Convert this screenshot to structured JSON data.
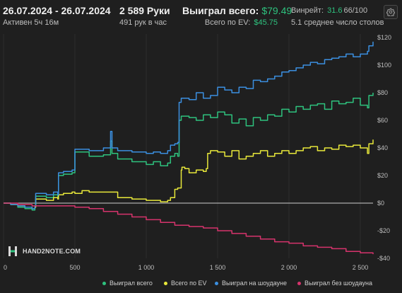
{
  "header": {
    "date_range": "26.07.2024 - 26.07.2024",
    "active_time": "Активен 5ч 16м",
    "hands_count": "2 589 Руки",
    "hands_rate": "491 рук в час",
    "won_total_label": "Выиграл всего:",
    "won_total_value": "$79.49",
    "ev_total_label": "Всего по EV:",
    "ev_total_value": "$45.75",
    "winrate_label": "Винрейт:",
    "winrate_value": "31.6",
    "winrate_suffix": "66/100",
    "avg_tables": "5.1 среднее число столов"
  },
  "icons": {
    "settings": "gear-icon",
    "logo": "hand2note-logo-icon"
  },
  "logo_text": "HAND2NOTE.COM",
  "colors": {
    "background": "#1f1f1f",
    "green": "#2ec27e",
    "yellow": "#e8e83a",
    "blue": "#3b8fe0",
    "pink": "#d6336c",
    "zero_line": "#cfcfcf",
    "grid": "#2e2e2e"
  },
  "chart_data": {
    "type": "line",
    "xlim": [
      0,
      2589
    ],
    "ylim": [
      -40,
      120
    ],
    "x_ticks": [
      0,
      500,
      1000,
      1500,
      2000,
      2500
    ],
    "x_tick_labels": [
      "0",
      "500",
      "1 000",
      "1 500",
      "2 000",
      "2 500"
    ],
    "y_ticks": [
      120,
      100,
      80,
      60,
      40,
      20,
      0,
      -20,
      -40
    ],
    "y_tick_labels": [
      "$120",
      "$100",
      "$80",
      "$60",
      "$40",
      "$20",
      "$0",
      "-$20",
      "-$40"
    ],
    "legend_position": "bottom",
    "grid": "vertical",
    "series": [
      {
        "name": "Выиграл всего",
        "color": "#2ec27e",
        "x": [
          0,
          50,
          100,
          150,
          200,
          220,
          225,
          300,
          350,
          380,
          385,
          420,
          480,
          500,
          600,
          700,
          710,
          750,
          760,
          800,
          900,
          1000,
          1050,
          1100,
          1150,
          1170,
          1200,
          1220,
          1230,
          1245,
          1300,
          1350,
          1400,
          1450,
          1500,
          1550,
          1600,
          1650,
          1700,
          1750,
          1800,
          1850,
          1900,
          1950,
          2000,
          2050,
          2100,
          2150,
          2200,
          2250,
          2300,
          2350,
          2400,
          2450,
          2500,
          2550,
          2560,
          2589
        ],
        "y": [
          0,
          -1,
          -3,
          -4,
          -5,
          -3,
          5,
          4,
          6,
          4,
          20,
          21,
          22,
          37,
          34,
          35,
          35,
          45,
          36,
          32,
          30,
          28,
          30,
          27,
          29,
          34,
          36,
          34,
          60,
          63,
          62,
          60,
          64,
          62,
          66,
          64,
          58,
          61,
          56,
          62,
          60,
          64,
          63,
          68,
          66,
          70,
          68,
          71,
          72,
          68,
          74,
          72,
          73,
          76,
          71,
          69,
          78,
          80
        ]
      },
      {
        "name": "Всего по EV",
        "color": "#e8e83a",
        "x": [
          0,
          50,
          100,
          150,
          200,
          220,
          225,
          300,
          350,
          380,
          385,
          420,
          480,
          500,
          550,
          600,
          700,
          800,
          900,
          1000,
          1050,
          1100,
          1150,
          1170,
          1200,
          1220,
          1245,
          1250,
          1270,
          1300,
          1350,
          1400,
          1420,
          1430,
          1450,
          1500,
          1550,
          1600,
          1650,
          1700,
          1750,
          1800,
          1850,
          1900,
          1950,
          2000,
          2050,
          2100,
          2150,
          2200,
          2250,
          2300,
          2350,
          2400,
          2450,
          2500,
          2550,
          2560,
          2589
        ],
        "y": [
          0,
          -1,
          -2,
          -3,
          -4,
          -3,
          3,
          2,
          4,
          3,
          6,
          7,
          8,
          7,
          9,
          8,
          8,
          4,
          3,
          2,
          2,
          1,
          2,
          4,
          10,
          11,
          24,
          26,
          25,
          22,
          24,
          23,
          25,
          36,
          38,
          37,
          34,
          38,
          32,
          34,
          36,
          38,
          34,
          36,
          38,
          36,
          38,
          40,
          41,
          38,
          40,
          39,
          42,
          41,
          42,
          40,
          36,
          43,
          46
        ]
      },
      {
        "name": "Выиграл на шоудауне",
        "color": "#3b8fe0",
        "x": [
          0,
          50,
          100,
          150,
          200,
          220,
          225,
          300,
          350,
          380,
          385,
          420,
          480,
          500,
          600,
          700,
          710,
          750,
          760,
          800,
          900,
          1000,
          1050,
          1100,
          1150,
          1170,
          1200,
          1220,
          1230,
          1245,
          1300,
          1350,
          1400,
          1450,
          1500,
          1550,
          1600,
          1650,
          1700,
          1750,
          1800,
          1850,
          1900,
          1950,
          2000,
          2050,
          2100,
          2150,
          2200,
          2250,
          2300,
          2350,
          2400,
          2450,
          2500,
          2550,
          2560,
          2589
        ],
        "y": [
          0,
          -1,
          -2,
          -3,
          -4,
          -2,
          7,
          6,
          8,
          6,
          22,
          23,
          24,
          39,
          38,
          40,
          40,
          52,
          40,
          38,
          37,
          36,
          37,
          36,
          38,
          42,
          43,
          44,
          73,
          76,
          75,
          80,
          76,
          78,
          84,
          82,
          80,
          84,
          83,
          89,
          88,
          90,
          92,
          95,
          96,
          98,
          100,
          102,
          101,
          104,
          105,
          106,
          108,
          106,
          108,
          110,
          114,
          117
        ]
      },
      {
        "name": "Выиграл без шоудауна",
        "color": "#d6336c",
        "x": [
          0,
          100,
          200,
          300,
          400,
          500,
          600,
          700,
          800,
          900,
          1000,
          1100,
          1200,
          1300,
          1400,
          1500,
          1600,
          1700,
          1800,
          1900,
          2000,
          2100,
          2200,
          2300,
          2400,
          2500,
          2589
        ],
        "y": [
          0,
          -1,
          -2,
          -2,
          -2,
          -3,
          -4,
          -6,
          -8,
          -10,
          -12,
          -14,
          -16,
          -17,
          -18,
          -20,
          -22,
          -24,
          -26,
          -28,
          -29,
          -31,
          -32,
          -33,
          -35,
          -36,
          -37
        ]
      }
    ]
  }
}
